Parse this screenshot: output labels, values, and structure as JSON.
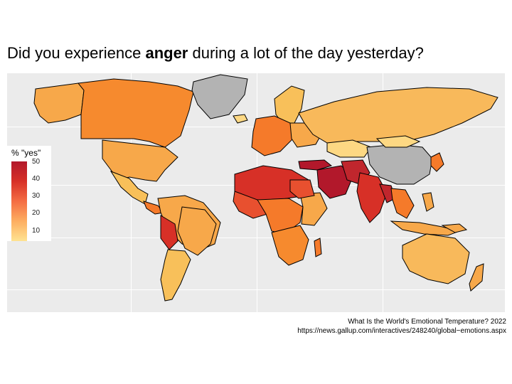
{
  "title": {
    "prefix": "Did you experience ",
    "emphasis": "anger",
    "suffix": " during a lot of the day yesterday?"
  },
  "legend": {
    "title": "% \"yes\"",
    "ticks": [
      "50",
      "40",
      "30",
      "20",
      "10"
    ],
    "colors": {
      "high": "#b2182b",
      "mid": "#f46d43",
      "low": "#fee391",
      "no_data": "#b3b3b3"
    }
  },
  "caption": {
    "line1": "What Is the World's Emotional Temperature? 2022",
    "line2": "https://news.gallup.com/interactives/248240/global−emotions.aspx"
  }
}
